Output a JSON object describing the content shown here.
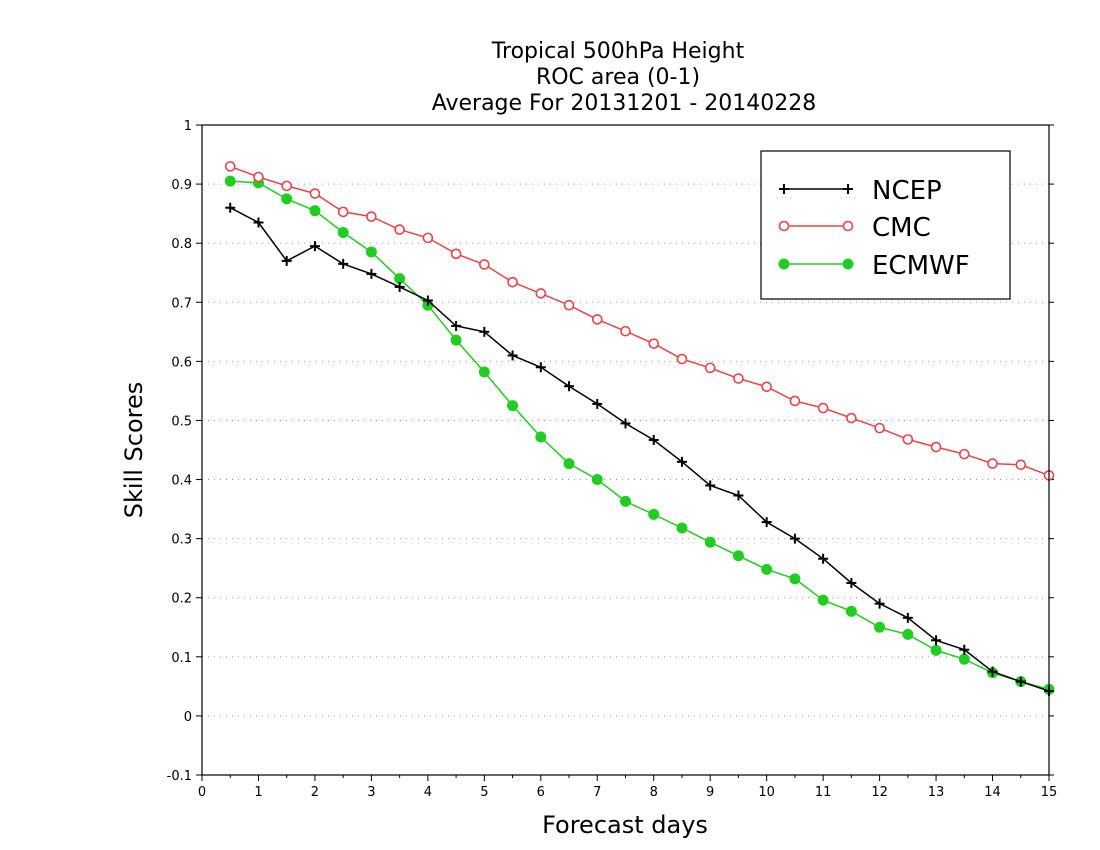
{
  "chart_data": {
    "type": "line",
    "title_lines": [
      "Tropical 500hPa Height",
      "ROC area (0-1)",
      "Average For 20131201 - 20140228"
    ],
    "xlabel": "Forecast days",
    "ylabel": "Skill Scores",
    "xlim": [
      0,
      15
    ],
    "ylim": [
      -0.1,
      1
    ],
    "xticks": [
      0,
      1,
      2,
      3,
      4,
      5,
      6,
      7,
      8,
      9,
      10,
      11,
      12,
      13,
      14,
      15
    ],
    "yticks": [
      -0.1,
      0,
      0.1,
      0.2,
      0.3,
      0.4,
      0.5,
      0.6,
      0.7,
      0.8,
      0.9,
      1
    ],
    "ytick_labels": [
      "-0.1",
      "0",
      "0.1",
      "0.2",
      "0.3",
      "0.4",
      "0.5",
      "0.6",
      "0.7",
      "0.8",
      "0.9",
      "1"
    ],
    "grid": "horizontal dotted",
    "legend_position": "top-right",
    "x": [
      0.5,
      1,
      1.5,
      2,
      2.5,
      3,
      3.5,
      4,
      4.5,
      5,
      5.5,
      6,
      6.5,
      7,
      7.5,
      8,
      8.5,
      9,
      9.5,
      10,
      10.5,
      11,
      11.5,
      12,
      12.5,
      13,
      13.5,
      14,
      14.5,
      15
    ],
    "series": [
      {
        "name": "NCEP",
        "color": "#000000",
        "marker": "plus",
        "values": [
          0.86,
          0.835,
          0.77,
          0.795,
          0.765,
          0.748,
          0.726,
          0.703,
          0.66,
          0.65,
          0.61,
          0.59,
          0.558,
          0.528,
          0.495,
          0.467,
          0.43,
          0.39,
          0.373,
          0.328,
          0.3,
          0.266,
          0.225,
          0.19,
          0.166,
          0.128,
          0.112,
          0.075,
          0.058,
          0.042
        ]
      },
      {
        "name": "CMC",
        "color": "#e8454a",
        "marker": "open-circle",
        "values": [
          0.93,
          0.912,
          0.897,
          0.884,
          0.853,
          0.845,
          0.823,
          0.809,
          0.782,
          0.764,
          0.734,
          0.715,
          0.695,
          0.671,
          0.651,
          0.63,
          0.604,
          0.589,
          0.571,
          0.557,
          0.533,
          0.521,
          0.504,
          0.487,
          0.468,
          0.455,
          0.443,
          0.427,
          0.425,
          0.407
        ]
      },
      {
        "name": "ECMWF",
        "color": "#22cc22",
        "marker": "filled-circle",
        "values": [
          0.905,
          0.902,
          0.875,
          0.855,
          0.818,
          0.785,
          0.74,
          0.695,
          0.636,
          0.582,
          0.525,
          0.472,
          0.427,
          0.4,
          0.363,
          0.341,
          0.318,
          0.294,
          0.271,
          0.248,
          0.232,
          0.196,
          0.177,
          0.15,
          0.138,
          0.111,
          0.096,
          0.073,
          0.058,
          0.045
        ]
      }
    ]
  }
}
